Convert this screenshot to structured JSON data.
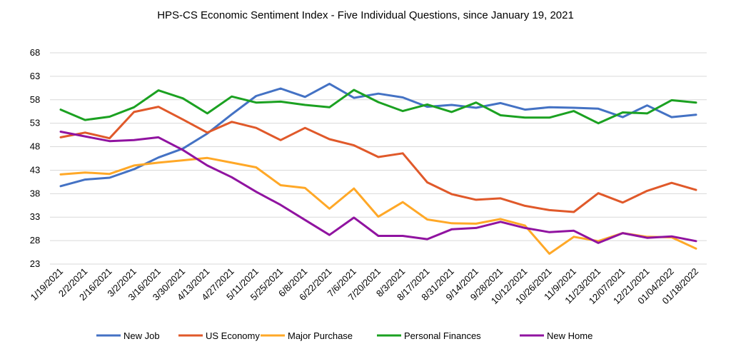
{
  "chart_data": {
    "type": "line",
    "title": "HPS-CS Economic Sentiment Index - Five Individual Questions, since January 19, 2021",
    "xlabel": "",
    "ylabel": "",
    "ylim": [
      23,
      68
    ],
    "yticks": [
      23,
      28,
      33,
      38,
      43,
      48,
      53,
      58,
      63,
      68
    ],
    "grid": true,
    "legend_position": "bottom",
    "categories": [
      "1/19/2021",
      "2/2/2021",
      "2/16/2021",
      "3/2/2021",
      "3/16/2021",
      "3/30/2021",
      "4/13/2021",
      "4/27/2021",
      "5/11/2021",
      "5/25/2021",
      "6/8/2021",
      "6/22/2021",
      "7/6/2021",
      "7/20/2021",
      "8/3/2021",
      "8/17/2021",
      "8/31/2021",
      "9/14/2021",
      "9/28/2021",
      "10/12/2021",
      "10/26/2021",
      "11/9/2021",
      "11/23/2021",
      "12/07/2021",
      "12/21/2021",
      "01/04/2022",
      "01/18/2022"
    ],
    "series": [
      {
        "name": "New Job",
        "color": "#4472c4",
        "values": [
          39.6,
          41.0,
          41.4,
          43.2,
          45.7,
          47.6,
          50.8,
          54.9,
          58.8,
          60.4,
          58.6,
          61.4,
          58.4,
          59.3,
          58.5,
          56.5,
          56.9,
          56.3,
          57.3,
          55.9,
          56.4,
          56.3,
          56.1,
          54.3,
          56.8,
          54.3,
          54.8
        ]
      },
      {
        "name": "US Economy",
        "color": "#e0592a",
        "values": [
          50.0,
          51.0,
          49.8,
          55.4,
          56.5,
          53.8,
          51.0,
          53.3,
          52.0,
          49.4,
          52.0,
          49.6,
          48.3,
          45.8,
          46.6,
          40.4,
          37.9,
          36.7,
          37.0,
          35.4,
          34.5,
          34.1,
          38.1,
          36.1,
          38.6,
          40.3,
          38.8
        ]
      },
      {
        "name": "Major Purchase",
        "color": "#ffa827",
        "values": [
          42.1,
          42.5,
          42.2,
          44.0,
          44.6,
          45.1,
          45.6,
          44.6,
          43.6,
          39.8,
          39.2,
          34.8,
          39.1,
          33.1,
          36.2,
          32.5,
          31.7,
          31.6,
          32.6,
          31.2,
          25.2,
          28.8,
          27.9,
          29.6,
          28.8,
          28.7,
          26.3
        ]
      },
      {
        "name": "Personal Finances",
        "color": "#1ba121",
        "values": [
          55.9,
          53.7,
          54.4,
          56.4,
          60.0,
          58.3,
          55.1,
          58.7,
          57.4,
          57.6,
          56.9,
          56.4,
          60.1,
          57.5,
          55.6,
          57.0,
          55.4,
          57.4,
          54.7,
          54.2,
          54.2,
          55.6,
          53.0,
          55.3,
          55.1,
          57.9,
          57.4
        ]
      },
      {
        "name": "New Home",
        "color": "#9013a0",
        "values": [
          51.2,
          50.2,
          49.2,
          49.4,
          50.0,
          47.3,
          44.0,
          41.5,
          38.4,
          35.6,
          32.4,
          29.2,
          32.9,
          29.0,
          29.0,
          28.3,
          30.4,
          30.7,
          32.0,
          30.7,
          29.8,
          30.1,
          27.5,
          29.6,
          28.6,
          28.9,
          27.9
        ]
      }
    ]
  }
}
